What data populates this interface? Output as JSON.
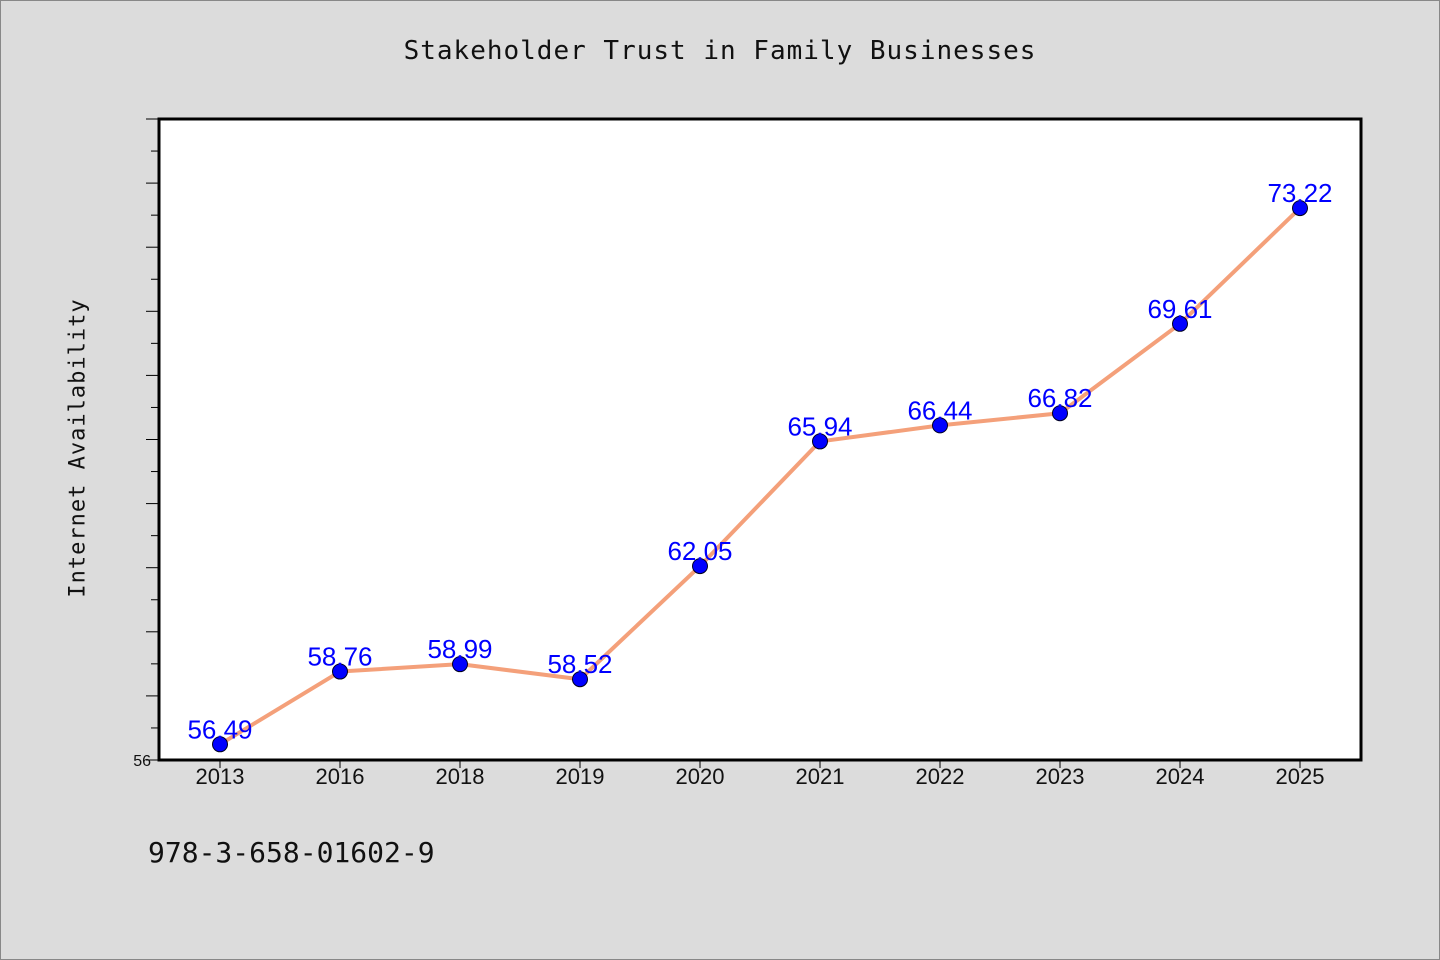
{
  "chart_data": {
    "type": "line",
    "title": "Stakeholder Trust in Family Businesses",
    "xlabel": "",
    "ylabel": "Internet Availability",
    "categories": [
      "2013",
      "2016",
      "2018",
      "2019",
      "2020",
      "2021",
      "2022",
      "2023",
      "2024",
      "2025"
    ],
    "series": [
      {
        "values": [
          56.49,
          58.76,
          58.99,
          58.52,
          62.05,
          65.94,
          66.44,
          66.82,
          69.61,
          73.22
        ],
        "line_color": "#f4a07a",
        "marker_color": "#0000ff"
      }
    ],
    "ylim": [
      56,
      76
    ],
    "yticks_labeled": [
      "56"
    ],
    "data_labels": [
      "56.49",
      "58.76",
      "58.99",
      "58.52",
      "62.05",
      "65.94",
      "66.44",
      "66.82",
      "69.61",
      "73.22"
    ],
    "grid": false,
    "legend": "none"
  },
  "footnote": "978-3-658-01602-9"
}
